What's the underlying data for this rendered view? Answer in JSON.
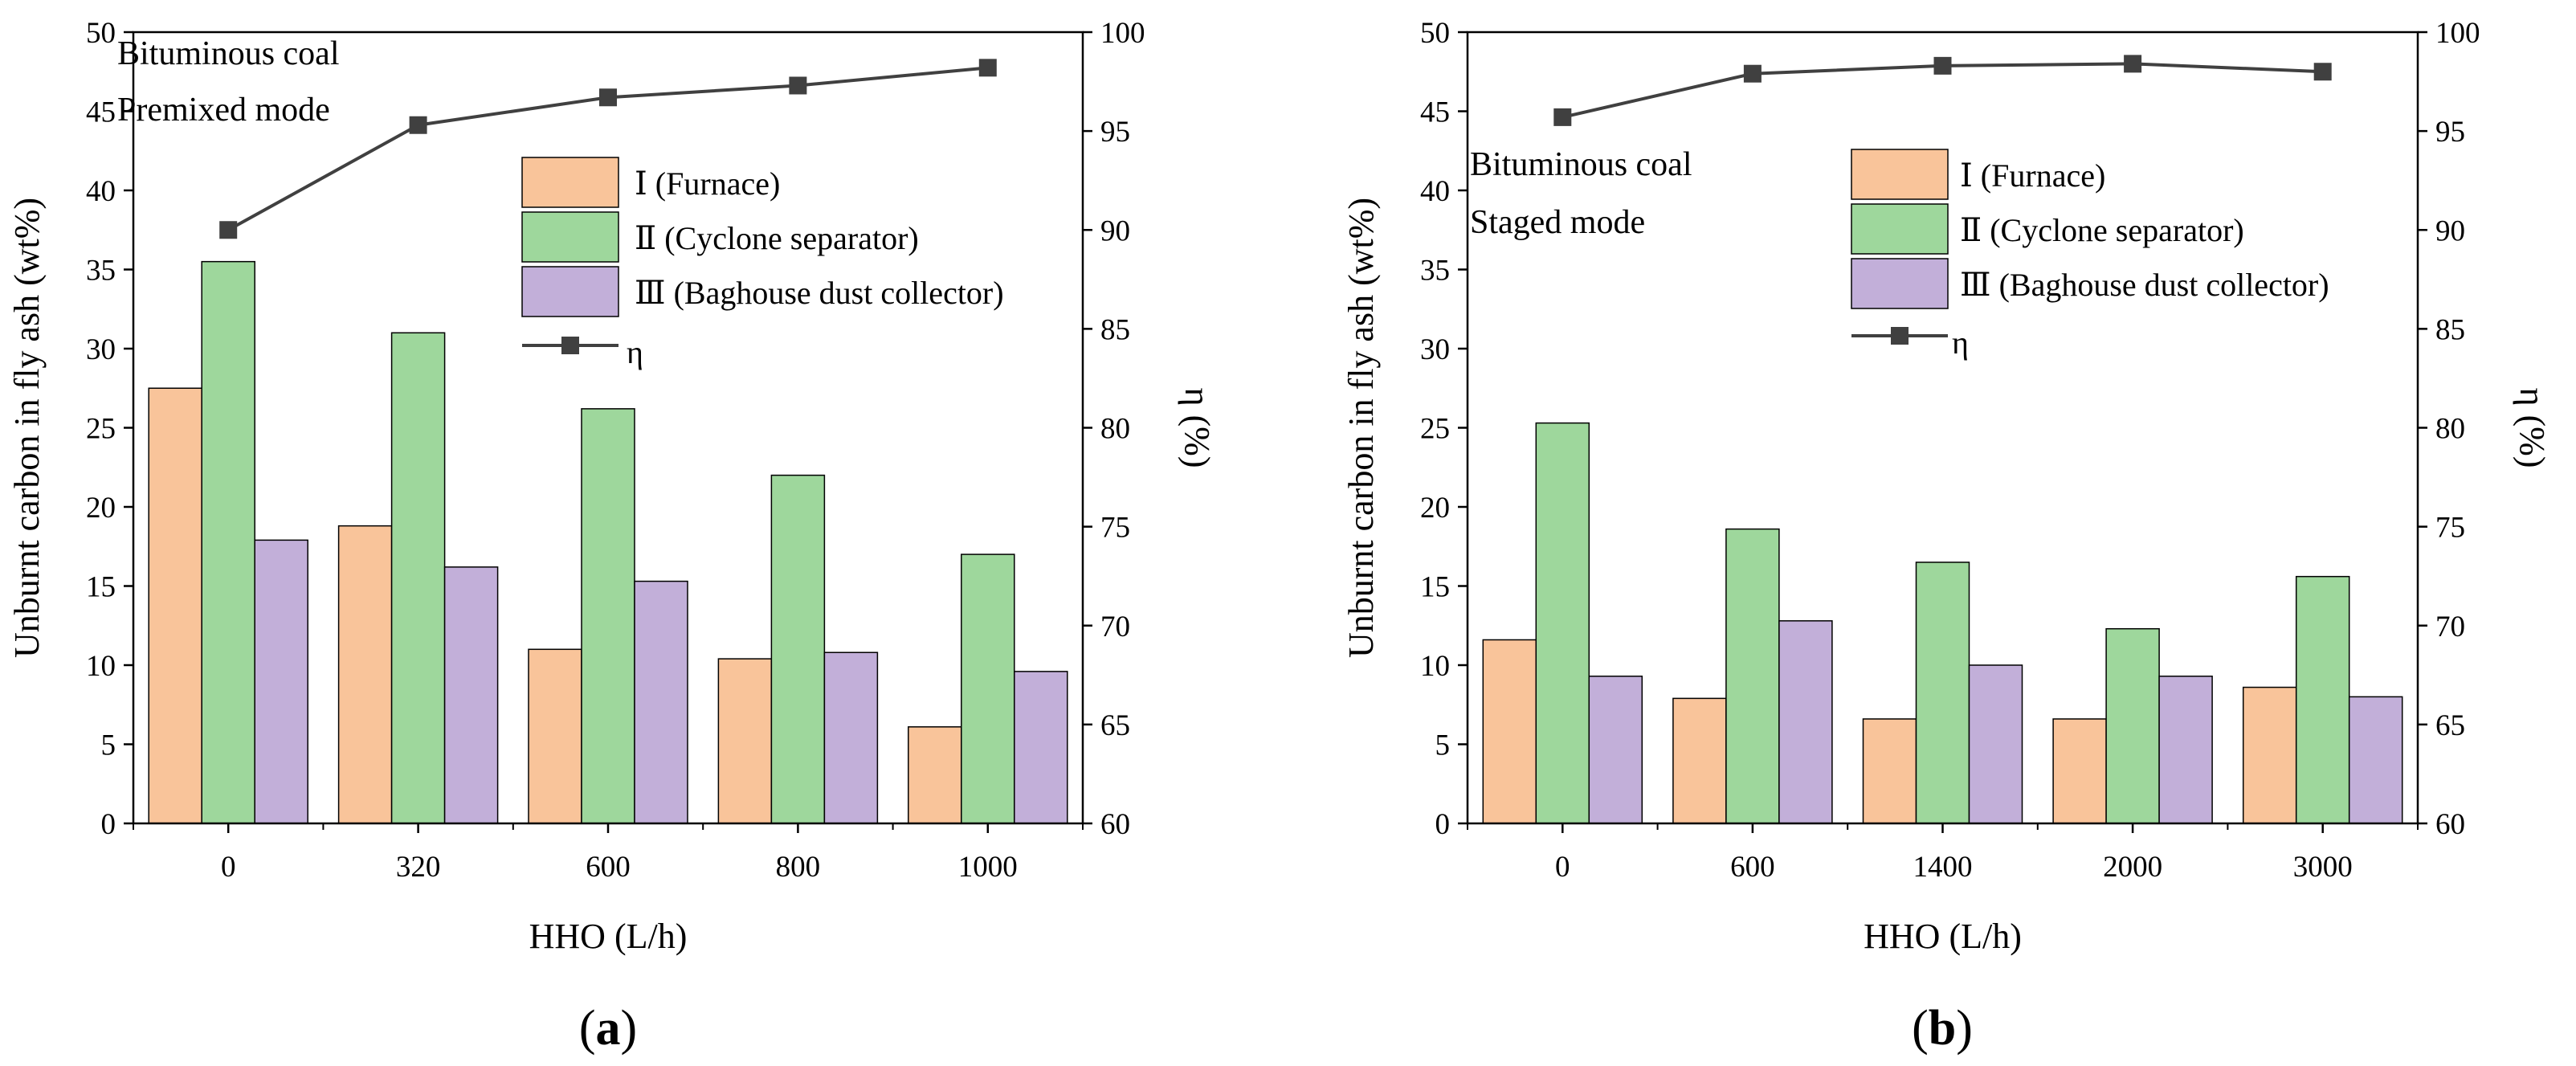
{
  "colors": {
    "furnace": "#F9C49A",
    "cyclone": "#9ED79C",
    "baghouse": "#C2AFD9",
    "eta": "#404040"
  },
  "chart_data": [
    {
      "type": "bar",
      "panel_label": "a",
      "categories": [
        "0",
        "320",
        "600",
        "800",
        "1000"
      ],
      "xlabel": "HHO (L/h)",
      "ylabel": "Unburnt carbon in fly ash (wt%)",
      "y2label": "η (%)",
      "ylim": [
        0,
        50
      ],
      "y2lim": [
        60,
        100
      ],
      "yticks": [
        "0",
        "5",
        "10",
        "15",
        "20",
        "25",
        "30",
        "35",
        "40",
        "45",
        "50"
      ],
      "y2ticks": [
        "60",
        "65",
        "70",
        "75",
        "80",
        "85",
        "90",
        "95",
        "100"
      ],
      "annotations": [
        "Bituminous coal",
        "Premixed mode"
      ],
      "series": [
        {
          "name": "Ⅰ  (Furnace)",
          "key": "furnace",
          "values": [
            27.5,
            18.8,
            11.0,
            10.4,
            6.1
          ]
        },
        {
          "name": "Ⅱ  (Cyclone separator)",
          "key": "cyclone",
          "values": [
            35.5,
            31.0,
            26.2,
            22.0,
            17.0
          ]
        },
        {
          "name": "Ⅲ (Baghouse dust collector)",
          "key": "baghouse",
          "values": [
            17.9,
            16.2,
            15.3,
            10.8,
            9.6
          ]
        }
      ],
      "line_series": {
        "name": "η",
        "key": "eta",
        "axis": "right",
        "values": [
          90.0,
          95.3,
          96.7,
          97.3,
          98.2
        ]
      }
    },
    {
      "type": "bar",
      "panel_label": "b",
      "categories": [
        "0",
        "600",
        "1400",
        "2000",
        "3000"
      ],
      "xlabel": "HHO (L/h)",
      "ylabel": "Unburnt carbon in fly ash (wt%)",
      "y2label": "η (%)",
      "ylim": [
        0,
        50
      ],
      "y2lim": [
        60,
        100
      ],
      "yticks": [
        "0",
        "5",
        "10",
        "15",
        "20",
        "25",
        "30",
        "35",
        "40",
        "45",
        "50"
      ],
      "y2ticks": [
        "60",
        "65",
        "70",
        "75",
        "80",
        "85",
        "90",
        "95",
        "100"
      ],
      "annotations": [
        "Bituminous coal",
        "Staged mode"
      ],
      "series": [
        {
          "name": "Ⅰ  (Furnace)",
          "key": "furnace",
          "values": [
            11.6,
            7.9,
            6.6,
            6.6,
            8.6
          ]
        },
        {
          "name": "Ⅱ  (Cyclone separator)",
          "key": "cyclone",
          "values": [
            25.3,
            18.6,
            16.5,
            12.3,
            15.6
          ]
        },
        {
          "name": "Ⅲ (Baghouse dust collector)",
          "key": "baghouse",
          "values": [
            9.3,
            12.8,
            10.0,
            9.3,
            8.0
          ]
        }
      ],
      "line_series": {
        "name": "η",
        "key": "eta",
        "axis": "right",
        "values": [
          95.7,
          97.9,
          98.3,
          98.4,
          98.0
        ]
      }
    }
  ]
}
